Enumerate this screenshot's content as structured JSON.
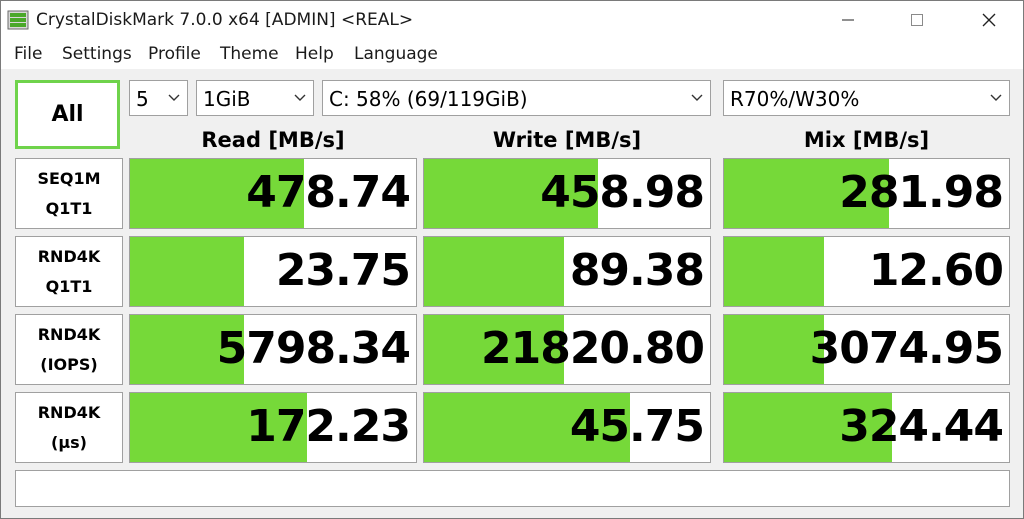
{
  "window": {
    "title": "CrystalDiskMark 7.0.0 x64 [ADMIN] <REAL>"
  },
  "menu": [
    "File",
    "Settings",
    "Profile",
    "Theme",
    "Help",
    "Language"
  ],
  "controls": {
    "all_button": "All",
    "count": "5",
    "size": "1GiB",
    "drive": "C: 58% (69/119GiB)",
    "mix": "R70%/W30%"
  },
  "columns": [
    "Read [MB/s]",
    "Write [MB/s]",
    "Mix [MB/s]"
  ],
  "rows": [
    {
      "label1": "SEQ1M",
      "label2": "Q1T1",
      "read": "478.74",
      "write": "458.98",
      "mix": "281.98",
      "read_fill": 0.61,
      "write_fill": 0.61,
      "mix_fill": 0.58
    },
    {
      "label1": "RND4K",
      "label2": "Q1T1",
      "read": "23.75",
      "write": "89.38",
      "mix": "12.60",
      "read_fill": 0.4,
      "write_fill": 0.49,
      "mix_fill": 0.35
    },
    {
      "label1": "RND4K",
      "label2": "(IOPS)",
      "read": "5798.34",
      "write": "21820.80",
      "mix": "3074.95",
      "read_fill": 0.4,
      "write_fill": 0.49,
      "mix_fill": 0.35
    },
    {
      "label1": "RND4K",
      "label2": "(µs)",
      "read": "172.23",
      "write": "45.75",
      "mix": "324.44",
      "read_fill": 0.62,
      "write_fill": 0.72,
      "mix_fill": 0.59
    }
  ],
  "status": "",
  "colors": {
    "accent_green": "#76d939",
    "all_border": "#6fd34b"
  },
  "icons": [
    "app-icon",
    "minimize-icon",
    "maximize-icon",
    "close-icon",
    "chevron-down-icon"
  ]
}
